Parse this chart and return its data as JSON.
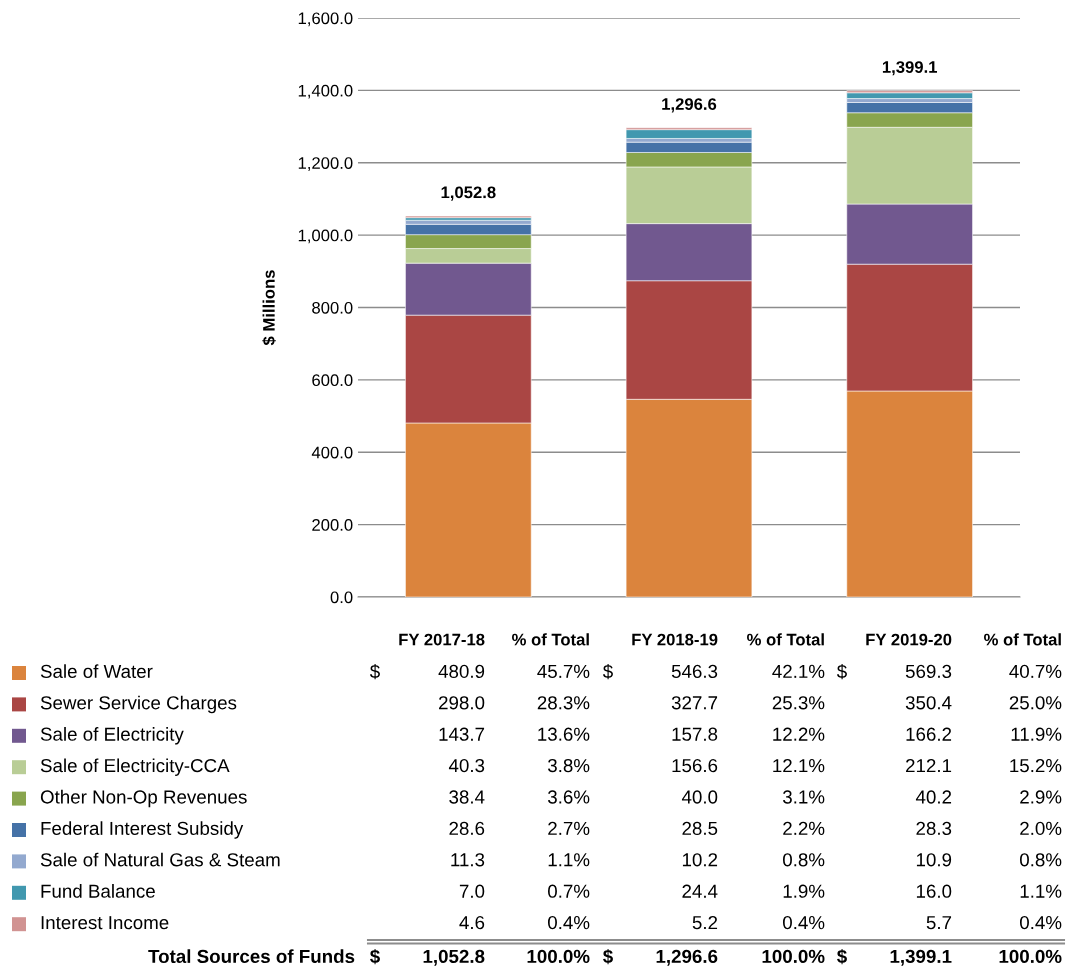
{
  "chart_data": {
    "type": "bar",
    "stacked": true,
    "ylabel": "$ Millions",
    "categories": [
      "FY 2017-18",
      "FY 2018-19",
      "FY 2019-20"
    ],
    "series": [
      {
        "name": "Sale of Water",
        "color": "#db843d",
        "values": [
          480.9,
          546.3,
          569.3
        ],
        "value_labels": [
          "480.9",
          "546.3",
          "569.3"
        ]
      },
      {
        "name": "Sewer Service Charges",
        "color": "#aa4644",
        "values": [
          298.0,
          327.7,
          350.4
        ],
        "value_labels": [
          "298.0",
          "327.7",
          "350.4"
        ]
      },
      {
        "name": "Sale of Electricity",
        "color": "#71588f",
        "values": [
          143.7,
          157.8,
          166.2
        ],
        "value_labels": [
          "143.7",
          "157.8",
          "166.2"
        ]
      },
      {
        "name": "Sale of Electricity-CCA",
        "color": "#b9cd96",
        "values": [
          40.3,
          156.6,
          212.1
        ],
        "value_labels": [
          "40.3",
          "156.6",
          "212.1"
        ]
      },
      {
        "name": "Other Non-Op Revenues",
        "color": "#89a54e",
        "values": [
          38.4,
          40.0,
          40.2
        ],
        "value_labels": [
          "38.4",
          "40.0",
          "40.2"
        ]
      },
      {
        "name": "Federal Interest Subsidy",
        "color": "#4572a7",
        "values": [
          28.6,
          28.5,
          28.3
        ],
        "value_labels": [
          "28.6",
          "28.5",
          "28.3"
        ]
      },
      {
        "name": "Sale of Natural Gas & Steam",
        "color": "#93a9cf",
        "values": [
          11.3,
          10.2,
          10.9
        ],
        "value_labels": [
          "11.3",
          "10.2",
          "10.9"
        ]
      },
      {
        "name": "Fund Balance",
        "color": "#4198af",
        "values": [
          7.0,
          24.4,
          16.0
        ],
        "value_labels": [
          "7.0",
          "24.4",
          "16.0"
        ]
      },
      {
        "name": "Interest Income",
        "color": "#d19392",
        "values": [
          4.6,
          5.2,
          5.7
        ],
        "value_labels": [
          "4.6",
          "5.2",
          "5.7"
        ]
      }
    ],
    "totals": [
      "1,052.8",
      "1,296.6",
      "1,399.1"
    ],
    "ylim": [
      0,
      1600
    ],
    "yticks": [
      {
        "value": 0,
        "label": "0.0"
      },
      {
        "value": 200,
        "label": "200.0"
      },
      {
        "value": 400,
        "label": "400.0"
      },
      {
        "value": 600,
        "label": "600.0"
      },
      {
        "value": 800,
        "label": "800.0"
      },
      {
        "value": 1000,
        "label": "1,000.0"
      },
      {
        "value": 1200,
        "label": "1,200.0"
      },
      {
        "value": 1400,
        "label": "1,400.0"
      },
      {
        "value": 1600,
        "label": "1,600.0"
      }
    ],
    "grid": "y",
    "legend": "bottom",
    "tick_labels": "y",
    "annotations": [
      "% of Total",
      "$",
      "Total Sources of Funds",
      "45.7%",
      "42.1%",
      "40.7%",
      "28.3%",
      "25.3%",
      "25.0%",
      "13.6%",
      "12.2%",
      "11.9%",
      "3.8%",
      "12.1%",
      "15.2%",
      "3.6%",
      "3.1%",
      "2.9%",
      "2.7%",
      "2.2%",
      "2.0%",
      "1.1%",
      "0.8%",
      "0.8%",
      "0.7%",
      "1.9%",
      "1.1%",
      "0.4%",
      "0.4%",
      "0.4%",
      "100.0%",
      "100.0%",
      "100.0%"
    ]
  }
}
